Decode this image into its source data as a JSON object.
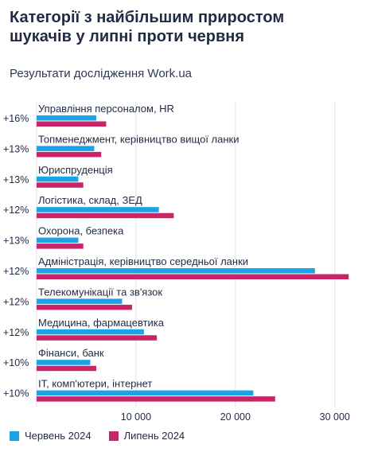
{
  "header": {
    "title_line1": "Категорії з найбільшим приростом",
    "title_line2": "шукачів у липні проти червня",
    "subtitle": "Результати дослідження Work.ua"
  },
  "colors": {
    "june": "#1aa3e8",
    "july": "#c72567",
    "grid": "#dfe3ea"
  },
  "legend": [
    {
      "label": "Червень 2024",
      "color": "#1aa3e8"
    },
    {
      "label": "Липень 2024",
      "color": "#c72567"
    }
  ],
  "chart_data": {
    "type": "bar",
    "orientation": "horizontal",
    "categories": [
      "Управління персоналом, HR",
      "Топменеджмент, керівництво вищої ланки",
      "Юриспруденція",
      "Логістика, склад, ЗЕД",
      "Охорона, безпека",
      "Адміністрація, керівництво середньої ланки",
      "Телекомунікації та зв'язок",
      "Медицина, фармацевтика",
      "Фінанси, банк",
      "ІТ, комп'ютери, інтернет"
    ],
    "growth_labels": [
      "+16%",
      "+13%",
      "+13%",
      "+12%",
      "+13%",
      "+12%",
      "+12%",
      "+12%",
      "+10%",
      "+10%"
    ],
    "series": [
      {
        "name": "Червень 2024",
        "values": [
          6000,
          5800,
          4200,
          12300,
          4200,
          28000,
          8600,
          10800,
          5400,
          21800
        ]
      },
      {
        "name": "Липень 2024",
        "values": [
          7000,
          6500,
          4700,
          13800,
          4700,
          31400,
          9600,
          12100,
          6000,
          24000
        ]
      }
    ],
    "x_ticks": [
      {
        "value": 10000,
        "label": "10 000"
      },
      {
        "value": 20000,
        "label": "20 000"
      },
      {
        "value": 30000,
        "label": "30 000"
      }
    ],
    "xlim": [
      0,
      32500
    ],
    "grid": true,
    "legend_position": "bottom-left"
  }
}
